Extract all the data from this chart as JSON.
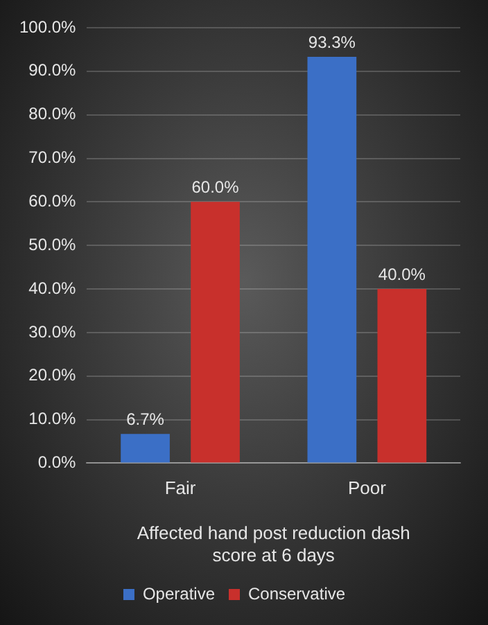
{
  "chart_data": {
    "type": "bar",
    "xlabel": "Affected hand post reduction dash score at 6 days",
    "categories": [
      "Fair",
      "Poor"
    ],
    "series": [
      {
        "name": "Operative",
        "color": "#3b6fc6",
        "values": [
          6.7,
          93.3
        ],
        "value_labels": [
          "6.7%",
          "93.3%"
        ]
      },
      {
        "name": "Conservative",
        "color": "#c8302c",
        "values": [
          60.0,
          40.0
        ],
        "value_labels": [
          "60.0%",
          "40.0%"
        ]
      }
    ],
    "ylim": [
      0,
      100
    ],
    "yticks": [
      {
        "value": 0,
        "label": "0.0%"
      },
      {
        "value": 10,
        "label": "10.0%"
      },
      {
        "value": 20,
        "label": "20.0%"
      },
      {
        "value": 30,
        "label": "30.0%"
      },
      {
        "value": 40,
        "label": "40.0%"
      },
      {
        "value": 50,
        "label": "50.0%"
      },
      {
        "value": 60,
        "label": "60.0%"
      },
      {
        "value": 70,
        "label": "70.0%"
      },
      {
        "value": 80,
        "label": "80.0%"
      },
      {
        "value": 90,
        "label": "90.0%"
      },
      {
        "value": 100,
        "label": "100.0%"
      }
    ],
    "grid": "y",
    "legend": "bottom"
  }
}
